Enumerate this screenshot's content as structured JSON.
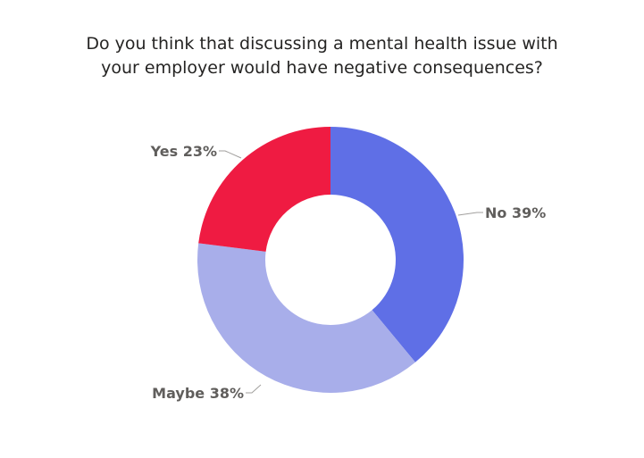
{
  "title_lines": [
    "Do you think that discussing a mental health issue with",
    "your employer would have negative consequences?"
  ],
  "chart_data": {
    "type": "pie",
    "variant": "donut",
    "title": "Do you think that discussing a mental health issue with your employer would have negative consequences?",
    "slices": [
      {
        "category": "No",
        "value": 39,
        "label": "No 39%",
        "color": "#5f6fe6"
      },
      {
        "category": "Maybe",
        "value": 38,
        "label": "Maybe 38%",
        "color": "#a8aeea"
      },
      {
        "category": "Yes",
        "value": 23,
        "label": "Yes 23%",
        "color": "#ef1b42"
      }
    ],
    "legend": "none"
  }
}
